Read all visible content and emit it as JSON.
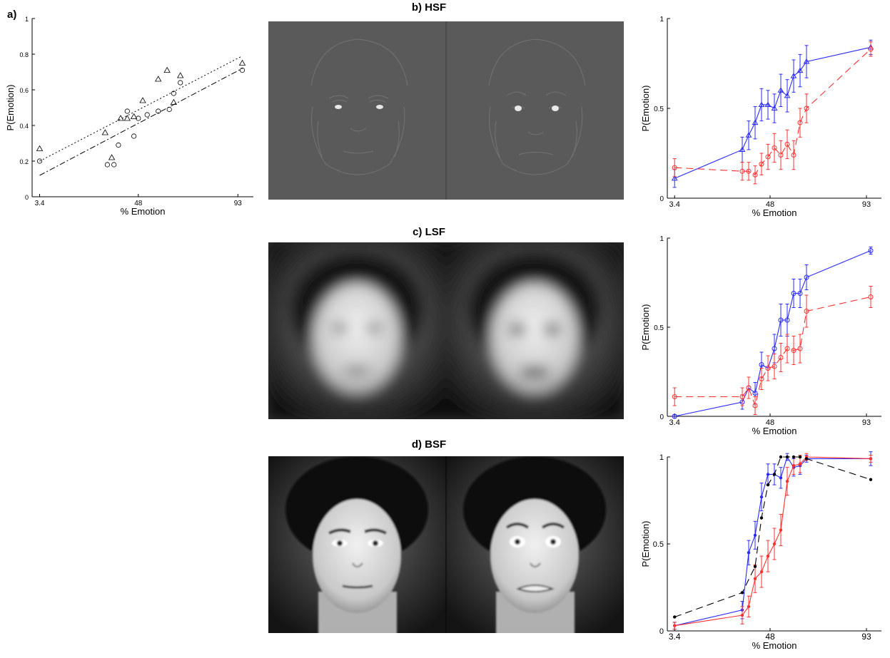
{
  "panels": {
    "a": {
      "label": "a)"
    },
    "b": {
      "title": "b) HSF"
    },
    "c": {
      "title": "c) LSF"
    },
    "d": {
      "title": "d) BSF"
    }
  },
  "colors": {
    "blue": "#2a2aff",
    "red": "#ff3030",
    "black": "#000000",
    "hsf_bg": "#595959"
  },
  "chart_data": [
    {
      "id": "a",
      "type": "scatter",
      "xlabel": "% Emotion",
      "ylabel": "P(Emotion)",
      "xticks": [
        3.4,
        48,
        93
      ],
      "xtick_labels": [
        "3.4",
        "48",
        "93"
      ],
      "yticks": [
        0,
        0.2,
        0.4,
        0.6,
        0.8,
        1
      ],
      "ytick_labels": [
        "0",
        "0.2",
        "0.4",
        "0.6",
        "0.8",
        "1"
      ],
      "xlim": [
        0,
        100
      ],
      "ylim": [
        0,
        1
      ],
      "series": [
        {
          "marker": "triangle",
          "points": [
            [
              3.4,
              0.27
            ],
            [
              33,
              0.36
            ],
            [
              36,
              0.22
            ],
            [
              40,
              0.44
            ],
            [
              43,
              0.44
            ],
            [
              46,
              0.45
            ],
            [
              50,
              0.54
            ],
            [
              57,
              0.66
            ],
            [
              61,
              0.71
            ],
            [
              64,
              0.53
            ],
            [
              67,
              0.68
            ],
            [
              95,
              0.75
            ]
          ]
        },
        {
          "marker": "circle",
          "points": [
            [
              3.4,
              0.2
            ],
            [
              34,
              0.18
            ],
            [
              37,
              0.18
            ],
            [
              39,
              0.29
            ],
            [
              43,
              0.48
            ],
            [
              46,
              0.34
            ],
            [
              48,
              0.44
            ],
            [
              52,
              0.46
            ],
            [
              57,
              0.48
            ],
            [
              62,
              0.49
            ],
            [
              64,
              0.58
            ],
            [
              67,
              0.64
            ],
            [
              95,
              0.71
            ]
          ]
        }
      ],
      "fits": [
        {
          "style": "dotted",
          "from": [
            3.4,
            0.2
          ],
          "to": [
            95,
            0.79
          ]
        },
        {
          "style": "dashdot",
          "from": [
            3.4,
            0.12
          ],
          "to": [
            95,
            0.72
          ]
        }
      ]
    },
    {
      "id": "b",
      "type": "line",
      "xlabel": "% Emotion",
      "ylabel": "P(Emotion)",
      "xticks": [
        3.4,
        48,
        93
      ],
      "xtick_labels": [
        "3.4",
        "48",
        "93"
      ],
      "yticks": [
        0,
        0.5,
        1
      ],
      "ytick_labels": [
        "0",
        "0.5",
        "1"
      ],
      "xlim": [
        0,
        100
      ],
      "ylim": [
        0,
        1
      ],
      "series": [
        {
          "color": "#2a2aff",
          "dash": "",
          "marker": "triangle",
          "x": [
            3.4,
            35,
            38,
            41,
            44,
            47,
            50,
            53,
            56,
            59,
            62,
            65,
            95
          ],
          "y": [
            0.11,
            0.27,
            0.35,
            0.42,
            0.52,
            0.52,
            0.5,
            0.6,
            0.57,
            0.68,
            0.71,
            0.76,
            0.84
          ],
          "err": [
            0.05,
            0.07,
            0.08,
            0.09,
            0.09,
            0.08,
            0.08,
            0.09,
            0.09,
            0.09,
            0.09,
            0.09,
            0.04
          ]
        },
        {
          "color": "#ff3030",
          "dash": "10,6",
          "marker": "circle",
          "x": [
            3.4,
            35,
            38,
            41,
            44,
            47,
            50,
            53,
            56,
            59,
            62,
            65,
            95
          ],
          "y": [
            0.17,
            0.15,
            0.15,
            0.13,
            0.19,
            0.23,
            0.28,
            0.24,
            0.3,
            0.24,
            0.42,
            0.5,
            0.83
          ],
          "err": [
            0.05,
            0.05,
            0.05,
            0.05,
            0.06,
            0.07,
            0.08,
            0.08,
            0.08,
            0.08,
            0.08,
            0.08,
            0.04
          ]
        }
      ]
    },
    {
      "id": "c",
      "type": "line",
      "xlabel": "% Emotion",
      "ylabel": "P(Emotion)",
      "xticks": [
        3.4,
        48,
        93
      ],
      "xtick_labels": [
        "3.4",
        "48",
        "93"
      ],
      "yticks": [
        0,
        0.5,
        1
      ],
      "ytick_labels": [
        "0",
        "0.5",
        "1"
      ],
      "xlim": [
        0,
        100
      ],
      "ylim": [
        0,
        1
      ],
      "series": [
        {
          "color": "#2a2aff",
          "dash": "",
          "marker": "circle",
          "x": [
            3.4,
            35,
            38,
            41,
            44,
            47,
            50,
            53,
            56,
            59,
            62,
            65,
            95
          ],
          "y": [
            0.0,
            0.08,
            0.16,
            0.13,
            0.29,
            0.27,
            0.38,
            0.54,
            0.54,
            0.69,
            0.69,
            0.78,
            0.93
          ],
          "err": [
            0.01,
            0.04,
            0.06,
            0.06,
            0.07,
            0.07,
            0.08,
            0.09,
            0.09,
            0.08,
            0.08,
            0.07,
            0.02
          ]
        },
        {
          "color": "#ff3030",
          "dash": "10,6",
          "marker": "circle",
          "x": [
            3.4,
            35,
            38,
            41,
            44,
            47,
            50,
            53,
            56,
            59,
            62,
            65,
            95
          ],
          "y": [
            0.11,
            0.11,
            0.16,
            0.06,
            0.21,
            0.27,
            0.28,
            0.33,
            0.38,
            0.37,
            0.38,
            0.59,
            0.67
          ],
          "err": [
            0.05,
            0.05,
            0.06,
            0.05,
            0.06,
            0.07,
            0.07,
            0.08,
            0.08,
            0.08,
            0.08,
            0.09,
            0.06
          ]
        }
      ]
    },
    {
      "id": "d",
      "type": "line",
      "xlabel": "% Emotion",
      "ylabel": "P(Emotion)",
      "xticks": [
        3.4,
        48,
        93
      ],
      "xtick_labels": [
        "3.4",
        "48",
        "93"
      ],
      "yticks": [
        0,
        0.5,
        1
      ],
      "ytick_labels": [
        "0",
        "0.5",
        "1"
      ],
      "xlim": [
        0,
        100
      ],
      "ylim": [
        0,
        1
      ],
      "series": [
        {
          "color": "#2a2aff",
          "dash": "",
          "marker": "dot",
          "x": [
            3.4,
            35,
            38,
            41,
            44,
            47,
            50,
            53,
            56,
            59,
            62,
            65,
            95
          ],
          "y": [
            0.03,
            0.12,
            0.45,
            0.55,
            0.77,
            0.9,
            0.9,
            0.88,
            1.0,
            0.94,
            0.95,
            0.99,
            0.99
          ],
          "err": [
            0.02,
            0.05,
            0.07,
            0.08,
            0.08,
            0.06,
            0.06,
            0.06,
            0.02,
            0.05,
            0.05,
            0.02,
            0.04
          ]
        },
        {
          "color": "#ff3030",
          "dash": "",
          "marker": "dot",
          "x": [
            3.4,
            35,
            38,
            41,
            44,
            47,
            50,
            53,
            56,
            59,
            62,
            65,
            95
          ],
          "y": [
            0.03,
            0.09,
            0.14,
            0.3,
            0.34,
            0.43,
            0.5,
            0.58,
            0.86,
            0.95,
            0.96,
            1.0,
            0.99
          ],
          "err": [
            0.02,
            0.05,
            0.06,
            0.08,
            0.09,
            0.09,
            0.09,
            0.09,
            0.08,
            0.05,
            0.05,
            0.02,
            0.02
          ]
        },
        {
          "color": "#000000",
          "dash": "10,6",
          "marker": "dot",
          "x": [
            3.4,
            35,
            41,
            44,
            47,
            50,
            53,
            56,
            59,
            62,
            65,
            95
          ],
          "y": [
            0.08,
            0.22,
            0.37,
            0.65,
            0.84,
            0.9,
            1.0,
            1.0,
            1.0,
            1.0,
            0.99,
            0.87
          ],
          "err": [
            0,
            0,
            0,
            0,
            0,
            0,
            0,
            0,
            0,
            0,
            0,
            0
          ]
        }
      ]
    }
  ]
}
